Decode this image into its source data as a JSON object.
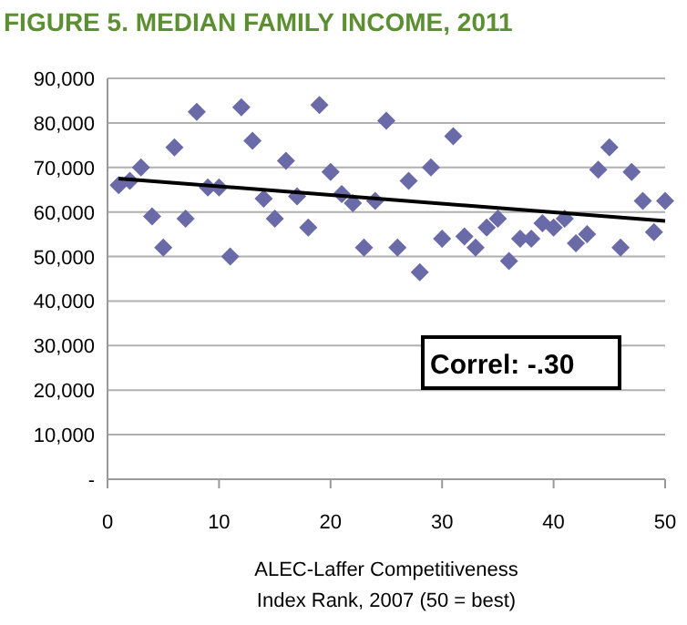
{
  "chart_data": {
    "type": "scatter",
    "title": "FIGURE 5.  MEDIAN FAMILY INCOME, 2011",
    "xlabel": "ALEC-Laffer Competitiveness\nIndex Rank, 2007 (50 = best)",
    "annotations": [
      "Correl: -.30"
    ],
    "xlim": [
      0,
      50
    ],
    "xticks": [
      0,
      10,
      20,
      30,
      40,
      50
    ],
    "ylim": [
      0,
      90000
    ],
    "yticks": [
      {
        "value": 0,
        "label": "-"
      },
      {
        "value": 10000,
        "label": "10,000"
      },
      {
        "value": 20000,
        "label": "20,000"
      },
      {
        "value": 30000,
        "label": "30,000"
      },
      {
        "value": 40000,
        "label": "40,000"
      },
      {
        "value": 50000,
        "label": "50,000"
      },
      {
        "value": 60000,
        "label": "60,000"
      },
      {
        "value": 70000,
        "label": "70,000"
      },
      {
        "value": 80000,
        "label": "80,000"
      },
      {
        "value": 90000,
        "label": "90,000"
      }
    ],
    "grid": "y",
    "series": [
      {
        "marker": "diamond",
        "color": "#6a6aa8",
        "x": [
          1,
          2,
          3,
          4,
          5,
          6,
          7,
          8,
          9,
          10,
          11,
          12,
          13,
          14,
          15,
          16,
          17,
          18,
          19,
          20,
          21,
          22,
          23,
          24,
          25,
          26,
          27,
          28,
          29,
          30,
          31,
          32,
          33,
          34,
          35,
          36,
          37,
          38,
          39,
          40,
          41,
          42,
          43,
          44,
          45,
          46,
          47,
          48,
          49,
          50
        ],
        "values": [
          66000,
          67000,
          70000,
          59000,
          52000,
          74500,
          58500,
          82500,
          65500,
          65500,
          50000,
          83500,
          76000,
          63000,
          58500,
          71500,
          63500,
          56500,
          84000,
          69000,
          64000,
          62000,
          52000,
          62500,
          80500,
          52000,
          67000,
          46500,
          70000,
          54000,
          77000,
          54500,
          52000,
          56500,
          58500,
          49000,
          54000,
          54000,
          57500,
          56500,
          58500,
          53000,
          55000,
          69500,
          74500,
          52000,
          69000,
          62500,
          55500,
          62500
        ]
      },
      {
        "type": "line",
        "color": "#000000",
        "x": [
          1,
          50
        ],
        "values": [
          67500,
          58000
        ]
      }
    ]
  }
}
